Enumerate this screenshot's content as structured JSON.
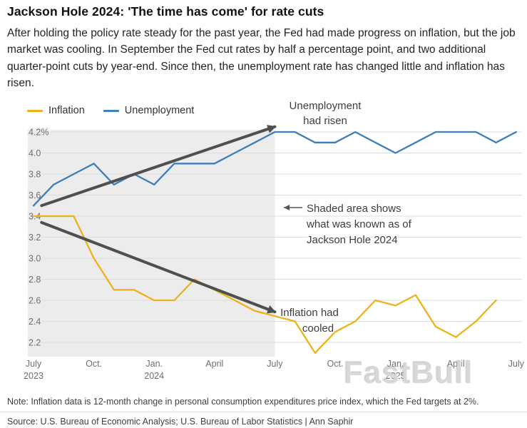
{
  "header": {
    "title": "Jackson Hole 2024: 'The time has come' for rate cuts",
    "description": "After holding the policy rate steady for the past year, the Fed had made progress on inflation, but the job market was cooling. In September the Fed cut rates by half a percentage point, and two additional quarter-point cuts by year-end. Since then, the unemployment rate has changed little and inflation has risen."
  },
  "legend": [
    {
      "label": "Inflation",
      "color": "#edb21b"
    },
    {
      "label": "Unemployment",
      "color": "#3d7ebc"
    }
  ],
  "chart_data": {
    "type": "line",
    "x_unit": "month",
    "x_start": "July 2023",
    "x_end": "July 2025",
    "ylim": [
      2.2,
      4.2
    ],
    "grid": true,
    "legend_position": "top-left",
    "yticks": [
      {
        "label": "4.2%",
        "value": 4.2
      },
      {
        "label": "4.0",
        "value": 4.0
      },
      {
        "label": "3.8",
        "value": 3.8
      },
      {
        "label": "3.6",
        "value": 3.6
      },
      {
        "label": "3.4",
        "value": 3.4
      },
      {
        "label": "3.2",
        "value": 3.2
      },
      {
        "label": "3.0",
        "value": 3.0
      },
      {
        "label": "2.8",
        "value": 2.8
      },
      {
        "label": "2.6",
        "value": 2.6
      },
      {
        "label": "2.4",
        "value": 2.4
      },
      {
        "label": "2.2",
        "value": 2.2
      }
    ],
    "xticks": [
      {
        "month": 0,
        "line1": "July",
        "line2": "2023"
      },
      {
        "month": 3,
        "line1": "Oct."
      },
      {
        "month": 6,
        "line1": "Jan.",
        "line2": "2024"
      },
      {
        "month": 9,
        "line1": "April"
      },
      {
        "month": 12,
        "line1": "July"
      },
      {
        "month": 15,
        "line1": "Oct."
      },
      {
        "month": 18,
        "line1": "Jan.",
        "line2": "2025"
      },
      {
        "month": 21,
        "line1": "April"
      },
      {
        "month": 24,
        "line1": "July"
      }
    ],
    "series": [
      {
        "name": "Inflation",
        "color": "#edb21b",
        "start_month": 0,
        "values": [
          3.4,
          3.4,
          3.4,
          3.0,
          2.7,
          2.7,
          2.6,
          2.6,
          2.8,
          2.7,
          2.6,
          2.5,
          2.45,
          2.4,
          2.1,
          2.3,
          2.4,
          2.6,
          2.55,
          2.65,
          2.35,
          2.25,
          2.4,
          2.6
        ]
      },
      {
        "name": "Unemployment",
        "color": "#3d7ebc",
        "start_month": 0,
        "values": [
          3.5,
          3.7,
          3.8,
          3.9,
          3.7,
          3.8,
          3.7,
          3.9,
          3.9,
          3.9,
          4.0,
          4.1,
          4.2,
          4.2,
          4.1,
          4.1,
          4.2,
          4.1,
          4.0,
          4.1,
          4.2,
          4.2,
          4.2,
          4.1,
          4.2
        ]
      }
    ],
    "shaded_region": {
      "start_month": 0,
      "end_month": 12,
      "color": "#ececec"
    },
    "trend_arrows": [
      {
        "from_month": 0.4,
        "from_value": 3.5,
        "to_month": 12,
        "to_value": 4.25
      },
      {
        "from_month": 0.4,
        "from_value": 3.34,
        "to_month": 12,
        "to_value": 2.49
      }
    ]
  },
  "annotations": {
    "unemployment_note": [
      "Unemployment",
      "had risen"
    ],
    "shaded_note": [
      "Shaded area shows",
      "what was known as of",
      "Jackson Hole 2024"
    ],
    "inflation_note": [
      "Inflation had",
      "cooled"
    ]
  },
  "footer": {
    "note": "Note: Inflation data is 12-month change in personal consumption expenditures price index, which the Fed targets at 2%.",
    "source": "Source: U.S. Bureau of Economic Analysis; U.S. Bureau of Labor Statistics | Ann Saphir"
  },
  "watermark": "FastBull"
}
